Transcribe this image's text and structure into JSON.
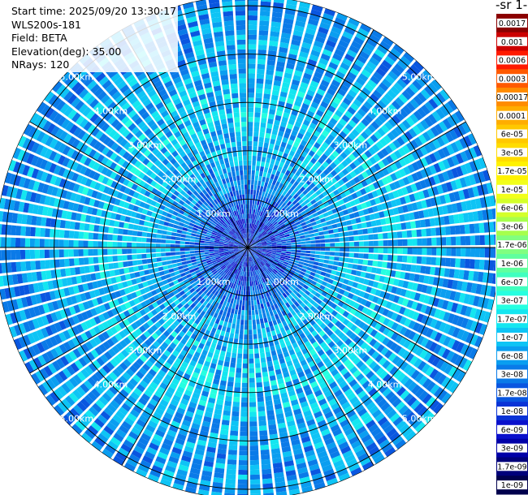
{
  "info": {
    "start_time": "Start time: 2025/09/20 13:30:17",
    "instrument": "WLS200s-181",
    "field": "Field: BETA",
    "elevation": "Elevation(deg): 35.00",
    "nrays": "NRays: 120"
  },
  "colorbar": {
    "title": "-1 sr-",
    "labels": [
      "0.0017",
      "0.001",
      "0.0006",
      "0.0003",
      "0.00017",
      "0.0001",
      "6e-05",
      "3e-05",
      "1.7e-05",
      "1e-05",
      "6e-06",
      "3e-06",
      "1.7e-06",
      "1e-06",
      "6e-07",
      "3e-07",
      "1.7e-07",
      "1e-07",
      "6e-08",
      "3e-08",
      "1.7e-08",
      "1e-08",
      "6e-09",
      "3e-09",
      "1.7e-09",
      "1e-09"
    ],
    "colors": [
      "#8b0000",
      "#cc0000",
      "#ff1a00",
      "#ff5a00",
      "#ff8c00",
      "#ffad00",
      "#ffc800",
      "#ffdc00",
      "#fff200",
      "#f2ff1a",
      "#d4ff2a",
      "#a6ff4d",
      "#80ff80",
      "#60ff9e",
      "#40ffbf",
      "#26ffe0",
      "#14e6f0",
      "#0ec4f5",
      "#0a9ef0",
      "#0a7ae8",
      "#0a56e0",
      "#0a33d6",
      "#0a10cc",
      "#0000a8",
      "#00007a",
      "#00004d"
    ]
  },
  "chart_data": {
    "type": "heatmap",
    "projection": "polar (PPI scan)",
    "field": "BETA",
    "elevation_deg": 35.0,
    "nrays": 120,
    "range_rings_km": [
      1,
      2,
      3,
      4,
      5
    ],
    "ring_labels": [
      "1.00km",
      "2.00km",
      "3.00km",
      "4.00km",
      "5.00km"
    ],
    "max_range_km": 5.2,
    "spokes_deg": [
      0,
      30,
      60,
      90,
      120,
      150,
      180,
      210,
      240,
      270,
      300,
      330
    ],
    "color_scale": "log",
    "color_range": [
      1e-09,
      0.0017
    ],
    "typical_value_by_range_km": [
      {
        "range_km": 0.5,
        "beta": 1.5e-08
      },
      {
        "range_km": 1.0,
        "beta": 3e-08
      },
      {
        "range_km": 1.5,
        "beta": 6e-08
      },
      {
        "range_km": 2.0,
        "beta": 1e-07
      },
      {
        "range_km": 2.5,
        "beta": 1.2e-07
      },
      {
        "range_km": 3.0,
        "beta": 1.4e-07
      },
      {
        "range_km": 4.0,
        "beta": 8e-08
      },
      {
        "range_km": 5.0,
        "beta": 6e-08
      }
    ]
  }
}
